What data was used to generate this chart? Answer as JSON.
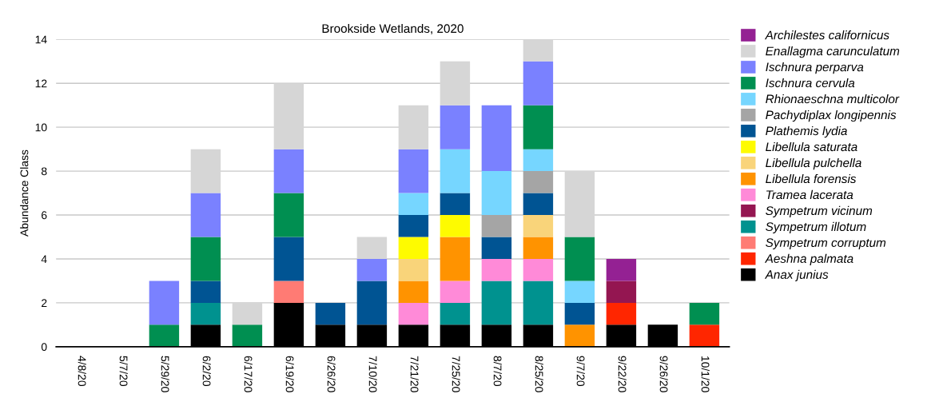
{
  "chart_data": {
    "type": "bar",
    "title": "Brookside Wetlands, 2020",
    "ylabel": "Abundance Class",
    "stacked": true,
    "grid": "y",
    "legend": "right",
    "categories": [
      "4/8/20",
      "5/7/20",
      "5/29/20",
      "6/2/20",
      "6/17/20",
      "6/19/20",
      "6/26/20",
      "7/10/20",
      "7/21/20",
      "7/25/20",
      "8/7/20",
      "8/25/20",
      "9/7/20",
      "9/22/20",
      "9/26/20",
      "10/1/20"
    ],
    "ylim": [
      0,
      14
    ],
    "yticks": [
      0,
      2,
      4,
      6,
      8,
      10,
      12,
      14
    ],
    "series": [
      {
        "name": "Anax junius",
        "color": "#000000",
        "values": [
          null,
          null,
          null,
          1,
          null,
          2,
          1,
          1,
          1,
          1,
          1,
          1,
          null,
          1,
          1,
          null
        ]
      },
      {
        "name": "Aeshna palmata",
        "color": "#ff2600",
        "values": [
          null,
          null,
          null,
          null,
          null,
          null,
          null,
          null,
          null,
          null,
          null,
          null,
          null,
          1,
          null,
          1
        ]
      },
      {
        "name": "Sympetrum corruptum",
        "color": "#ff7b74",
        "values": [
          null,
          null,
          null,
          null,
          null,
          1,
          null,
          null,
          null,
          null,
          null,
          null,
          null,
          null,
          null,
          null
        ]
      },
      {
        "name": "Sympetrum illotum",
        "color": "#00928f",
        "values": [
          null,
          null,
          null,
          1,
          null,
          null,
          null,
          null,
          null,
          1,
          2,
          2,
          null,
          null,
          null,
          null
        ]
      },
      {
        "name": "Sympetrum vicinum",
        "color": "#941651",
        "values": [
          null,
          null,
          null,
          null,
          null,
          null,
          null,
          null,
          null,
          null,
          null,
          null,
          null,
          1,
          null,
          null
        ]
      },
      {
        "name": "Tramea lacerata",
        "color": "#ff8ad8",
        "values": [
          null,
          null,
          null,
          null,
          null,
          null,
          null,
          null,
          1,
          1,
          1,
          1,
          null,
          null,
          null,
          null
        ]
      },
      {
        "name": "Libellula forensis",
        "color": "#ff9300",
        "values": [
          null,
          null,
          null,
          null,
          null,
          null,
          null,
          null,
          1,
          2,
          null,
          1,
          1,
          null,
          null,
          null
        ]
      },
      {
        "name": "Libellula pulchella",
        "color": "#f9d47a",
        "values": [
          null,
          null,
          null,
          null,
          null,
          null,
          null,
          null,
          1,
          null,
          null,
          1,
          null,
          null,
          null,
          null
        ]
      },
      {
        "name": "Libellula saturata",
        "color": "#fefb00",
        "values": [
          null,
          null,
          null,
          null,
          null,
          null,
          null,
          null,
          1,
          1,
          null,
          null,
          null,
          null,
          null,
          null
        ]
      },
      {
        "name": "Plathemis lydia",
        "color": "#005493",
        "values": [
          null,
          null,
          null,
          1,
          null,
          2,
          1,
          2,
          1,
          1,
          1,
          1,
          1,
          null,
          null,
          null
        ]
      },
      {
        "name": "Pachydiplax longipennis",
        "color": "#a5a5a5",
        "values": [
          null,
          null,
          null,
          null,
          null,
          null,
          null,
          null,
          null,
          null,
          1,
          1,
          null,
          null,
          null,
          null
        ]
      },
      {
        "name": "Rhionaeschna multicolor",
        "color": "#76d6ff",
        "values": [
          null,
          null,
          null,
          null,
          null,
          null,
          null,
          null,
          1,
          2,
          2,
          1,
          1,
          null,
          null,
          null
        ]
      },
      {
        "name": "Ischnura cervula",
        "color": "#008f51",
        "values": [
          null,
          null,
          1,
          2,
          1,
          2,
          null,
          null,
          null,
          null,
          null,
          2,
          2,
          null,
          null,
          1
        ]
      },
      {
        "name": "Ischnura perparva",
        "color": "#7a81ff",
        "values": [
          null,
          null,
          2,
          2,
          null,
          2,
          null,
          1,
          2,
          2,
          3,
          2,
          null,
          null,
          null,
          null
        ]
      },
      {
        "name": "Enallagma carunculatum",
        "color": "#d6d6d6",
        "values": [
          null,
          null,
          null,
          2,
          1,
          3,
          null,
          1,
          2,
          2,
          null,
          1,
          3,
          null,
          null,
          null
        ]
      },
      {
        "name": "Archilestes californicus",
        "color": "#942193",
        "values": [
          null,
          null,
          null,
          null,
          null,
          null,
          null,
          null,
          null,
          null,
          null,
          null,
          null,
          1,
          null,
          null
        ]
      }
    ]
  }
}
